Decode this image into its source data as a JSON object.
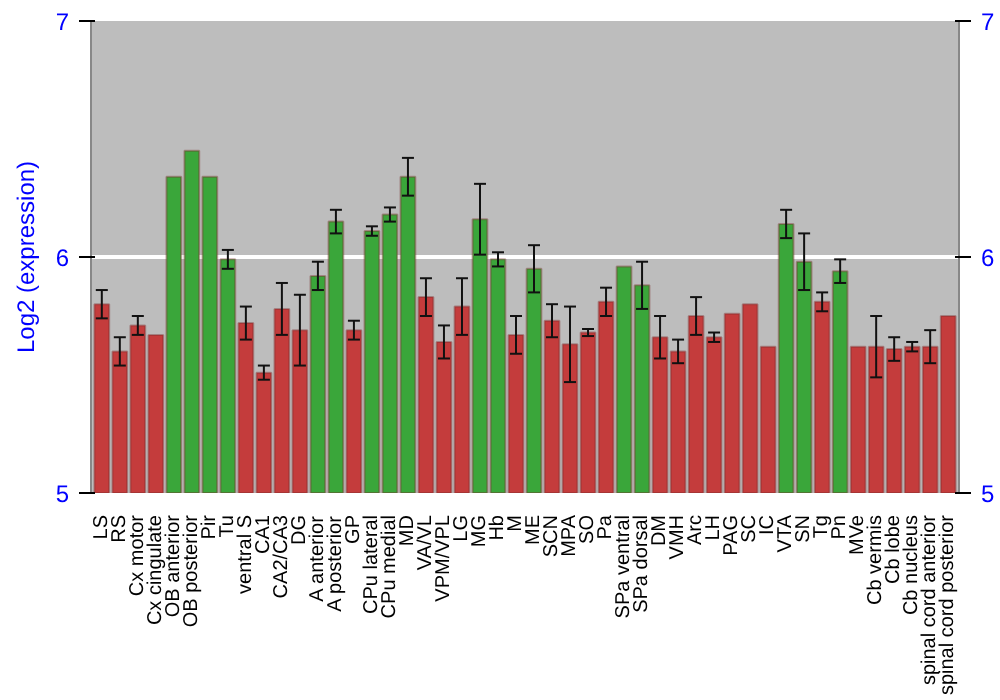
{
  "chart_data": {
    "type": "bar",
    "ylabel": "Log2 (expression)",
    "categories": [
      "LS",
      "RS",
      "Cx motor",
      "Cx cingulate",
      "OB anterior",
      "OB posterior",
      "Pir",
      "Tu",
      "ventral S",
      "CA1",
      "CA2/CA3",
      "DG",
      "A anterior",
      "A posterior",
      "GP",
      "CPu lateral",
      "CPu medial",
      "MD",
      "VA/VL",
      "VPM/VPL",
      "LG",
      "MG",
      "Hb",
      "M",
      "ME",
      "SCN",
      "MPA",
      "SO",
      "Pa",
      "SPa ventral",
      "SPa dorsal",
      "DM",
      "VMH",
      "Arc",
      "LH",
      "PAG",
      "SC",
      "IC",
      "VTA",
      "SN",
      "Tg",
      "Pn",
      "MVe",
      "Cb vermis",
      "Cb lobe",
      "Cb nucleus",
      "spinal cord anterior",
      "spinal cord posterior"
    ],
    "values": [
      5.8,
      5.6,
      5.71,
      5.67,
      6.34,
      6.45,
      6.34,
      5.99,
      5.72,
      5.51,
      5.78,
      5.69,
      5.92,
      6.15,
      5.69,
      6.11,
      6.18,
      6.34,
      5.83,
      5.64,
      5.79,
      6.16,
      5.99,
      5.67,
      5.95,
      5.73,
      5.63,
      5.68,
      5.81,
      5.96,
      5.88,
      5.66,
      5.6,
      5.75,
      5.66,
      5.76,
      5.8,
      5.62,
      6.14,
      5.98,
      5.81,
      5.94,
      5.62,
      5.62,
      5.61,
      5.62,
      5.62,
      5.75
    ],
    "errors": [
      0.06,
      0.06,
      0.04,
      null,
      null,
      null,
      null,
      0.04,
      0.07,
      0.03,
      0.11,
      0.15,
      0.06,
      0.05,
      0.04,
      0.02,
      0.03,
      0.08,
      0.08,
      0.07,
      0.12,
      0.15,
      0.03,
      0.08,
      0.1,
      0.07,
      0.16,
      0.015,
      0.06,
      null,
      0.1,
      0.09,
      0.05,
      0.08,
      0.02,
      null,
      null,
      null,
      0.06,
      0.12,
      0.04,
      0.05,
      null,
      0.13,
      0.05,
      0.02,
      0.07,
      null
    ],
    "colors": [
      "#c43c3c",
      "#c43c3c",
      "#c43c3c",
      "#c43c3c",
      "#3aa63a",
      "#3aa63a",
      "#3aa63a",
      "#3aa63a",
      "#c43c3c",
      "#c43c3c",
      "#c43c3c",
      "#c43c3c",
      "#3aa63a",
      "#3aa63a",
      "#c43c3c",
      "#3aa63a",
      "#3aa63a",
      "#3aa63a",
      "#c43c3c",
      "#c43c3c",
      "#c43c3c",
      "#3aa63a",
      "#3aa63a",
      "#c43c3c",
      "#3aa63a",
      "#c43c3c",
      "#c43c3c",
      "#c43c3c",
      "#c43c3c",
      "#3aa63a",
      "#3aa63a",
      "#c43c3c",
      "#c43c3c",
      "#c43c3c",
      "#c43c3c",
      "#c43c3c",
      "#c43c3c",
      "#c43c3c",
      "#3aa63a",
      "#3aa63a",
      "#c43c3c",
      "#3aa63a",
      "#c43c3c",
      "#c43c3c",
      "#c43c3c",
      "#c43c3c",
      "#c43c3c",
      "#c43c3c"
    ],
    "ylim": [
      5,
      7
    ],
    "yticks": [
      5,
      6,
      7
    ],
    "y2lim": [
      5,
      7
    ],
    "y2ticks": [
      5,
      6,
      7
    ],
    "grid": "y"
  }
}
